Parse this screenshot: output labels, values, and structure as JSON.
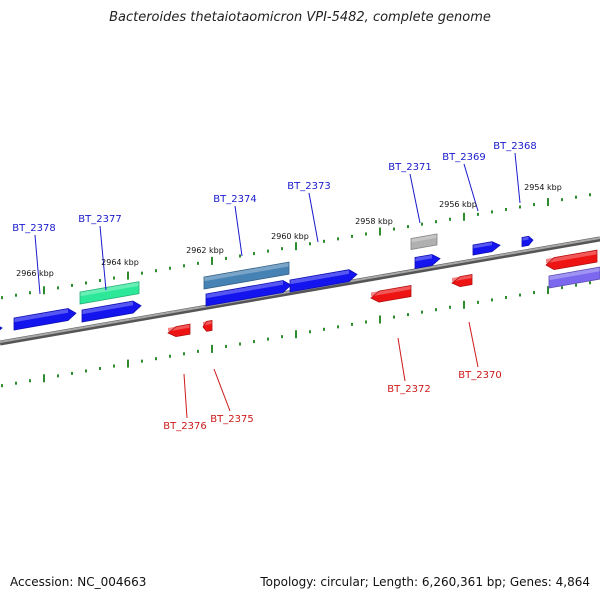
{
  "title": "Bacteroides thetaiotaomicron VPI-5482, complete genome",
  "footer": {
    "accession": "Accession: NC_004663",
    "summary": "Topology: circular; Length: 6,260,361 bp; Genes: 4,864"
  },
  "colors": {
    "backbone": "#777777",
    "ticks": "#2e8b2e",
    "forward_label": "#1a1acc",
    "reverse_label": "#cc1a1a",
    "blue_gene": "#1414ee",
    "red_gene": "#ee1414",
    "steel_gene": "#4682b4",
    "aqua_gene": "#2ee89a",
    "slate_gene": "#7b68ee",
    "grey_gene": "#b0b0b0"
  },
  "position_markers": [
    "2966 kbp",
    "2964 kbp",
    "2962 kbp",
    "2960 kbp",
    "2958 kbp",
    "2956 kbp",
    "2954 kbp"
  ],
  "forward_gene_labels": [
    "BT_2378",
    "BT_2377",
    "BT_2374",
    "BT_2373",
    "BT_2371",
    "BT_2369",
    "BT_2368"
  ],
  "reverse_gene_labels": [
    "BT_2376",
    "BT_2375",
    "BT_2372",
    "BT_2370"
  ]
}
